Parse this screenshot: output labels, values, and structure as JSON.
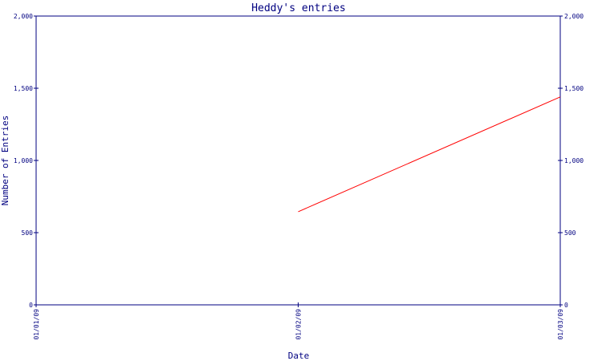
{
  "chart_data": {
    "type": "line",
    "title": "Heddy's entries",
    "xlabel": "Date",
    "ylabel": "Number of Entries",
    "categories": [
      "01/01/09",
      "01/02/09",
      "01/03/09"
    ],
    "ylim": [
      0,
      2000
    ],
    "yticks": [
      0,
      500,
      1000,
      1500,
      2000
    ],
    "ytick_labels": [
      "0",
      "500",
      "1,000",
      "1,500",
      "2,000"
    ],
    "grid": false,
    "right_axis": true,
    "series": [
      {
        "color": "#ff0000",
        "points": [
          {
            "x": "01/02/09",
            "y": 645
          },
          {
            "x": "01/03/09",
            "y": 1440
          }
        ]
      }
    ]
  },
  "colors": {
    "axis": "#000080",
    "line": "#ff0000",
    "background": "#ffffff"
  }
}
